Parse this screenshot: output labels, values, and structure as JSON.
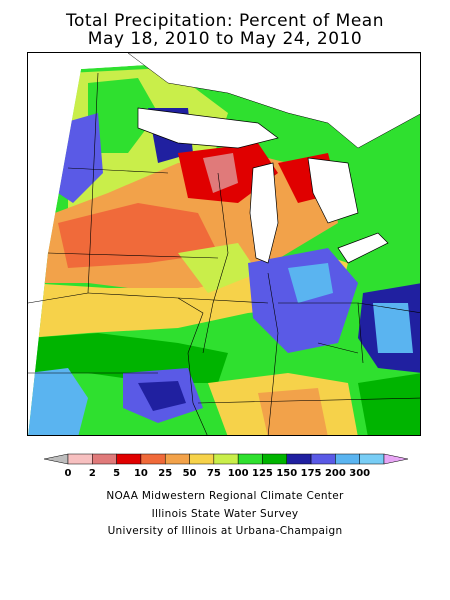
{
  "title": {
    "line1": "Total Precipitation: Percent of Mean",
    "line2": "May 18, 2010 to May 24, 2010"
  },
  "legend": {
    "ticks": [
      "0",
      "2",
      "5",
      "10",
      "25",
      "50",
      "75",
      "100",
      "125",
      "150",
      "175",
      "200",
      "300"
    ],
    "colors": [
      "#bdbdbd",
      "#f7c0c0",
      "#e07a7a",
      "#e00000",
      "#f06a3a",
      "#f2a24a",
      "#f6d24a",
      "#c9ee4a",
      "#2fe02f",
      "#00b400",
      "#2020a0",
      "#5a5ae6",
      "#5ab4f0",
      "#78cdf5",
      "#e8a6f5"
    ]
  },
  "map_colors": {
    "land_low": "#f2a24a",
    "lake": "#ffffff",
    "outline": "#000000"
  },
  "credits": {
    "line1": "NOAA Midwestern Regional Climate Center",
    "line2": "Illinois State Water Survey",
    "line3": "University of Illinois at Urbana-Champaign"
  }
}
